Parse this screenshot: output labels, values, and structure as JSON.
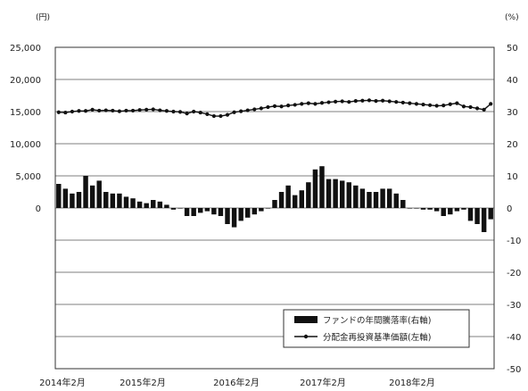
{
  "chart_data": {
    "type": "bar+line",
    "left_axis": {
      "unit": "(円)",
      "ticks": [
        "25,000",
        "20,000",
        "15,000",
        "10,000",
        "5,000",
        "0"
      ],
      "ylim": [
        -25000,
        25000
      ]
    },
    "right_axis": {
      "unit": "(%)",
      "ticks": [
        "50",
        "40",
        "30",
        "20",
        "10",
        "0",
        "-10",
        "-20",
        "-30",
        "-40",
        "-50"
      ],
      "ylim": [
        -50,
        50
      ]
    },
    "x_labels": [
      "2014年2月",
      "2015年2月",
      "2016年2月",
      "2017年2月",
      "2018年2月"
    ],
    "series": [
      {
        "name": "ファンドの年間騰落率(右軸)",
        "kind": "bar",
        "axis": "right",
        "color": "#111111",
        "values": [
          7.5,
          6,
          4.5,
          5,
          10,
          7,
          8.5,
          5,
          4.5,
          4.5,
          3.5,
          3,
          2,
          1.5,
          2.5,
          2,
          1,
          -0.5,
          0,
          -2.5,
          -2.5,
          -1.5,
          -1,
          -2,
          -2.5,
          -5,
          -6,
          -4,
          -3,
          -2,
          -1,
          0,
          2.5,
          5,
          7,
          4,
          5.5,
          8,
          12,
          13,
          9,
          9,
          8.5,
          8,
          7,
          6,
          5,
          5,
          6,
          6,
          4.5,
          2.5,
          0,
          0,
          -0.5,
          -0.5,
          -1,
          -2.5,
          -2,
          -1,
          -0.5,
          -4,
          -5,
          -7.5,
          -3.5
        ]
      },
      {
        "name": "分配金再投資基準価額(左軸)",
        "kind": "line",
        "axis": "left",
        "color": "#111111",
        "values": [
          14900,
          14850,
          15000,
          15100,
          15100,
          15300,
          15150,
          15200,
          15150,
          15050,
          15150,
          15150,
          15250,
          15300,
          15350,
          15200,
          15100,
          15000,
          14950,
          14700,
          15000,
          14850,
          14600,
          14300,
          14300,
          14500,
          14900,
          15050,
          15200,
          15350,
          15500,
          15700,
          15850,
          15800,
          15950,
          16050,
          16200,
          16300,
          16200,
          16350,
          16450,
          16550,
          16600,
          16500,
          16650,
          16700,
          16750,
          16650,
          16700,
          16600,
          16500,
          16400,
          16300,
          16200,
          16100,
          16000,
          15900,
          15950,
          16150,
          16300,
          15800,
          15700,
          15500,
          15300,
          16200
        ]
      }
    ]
  }
}
